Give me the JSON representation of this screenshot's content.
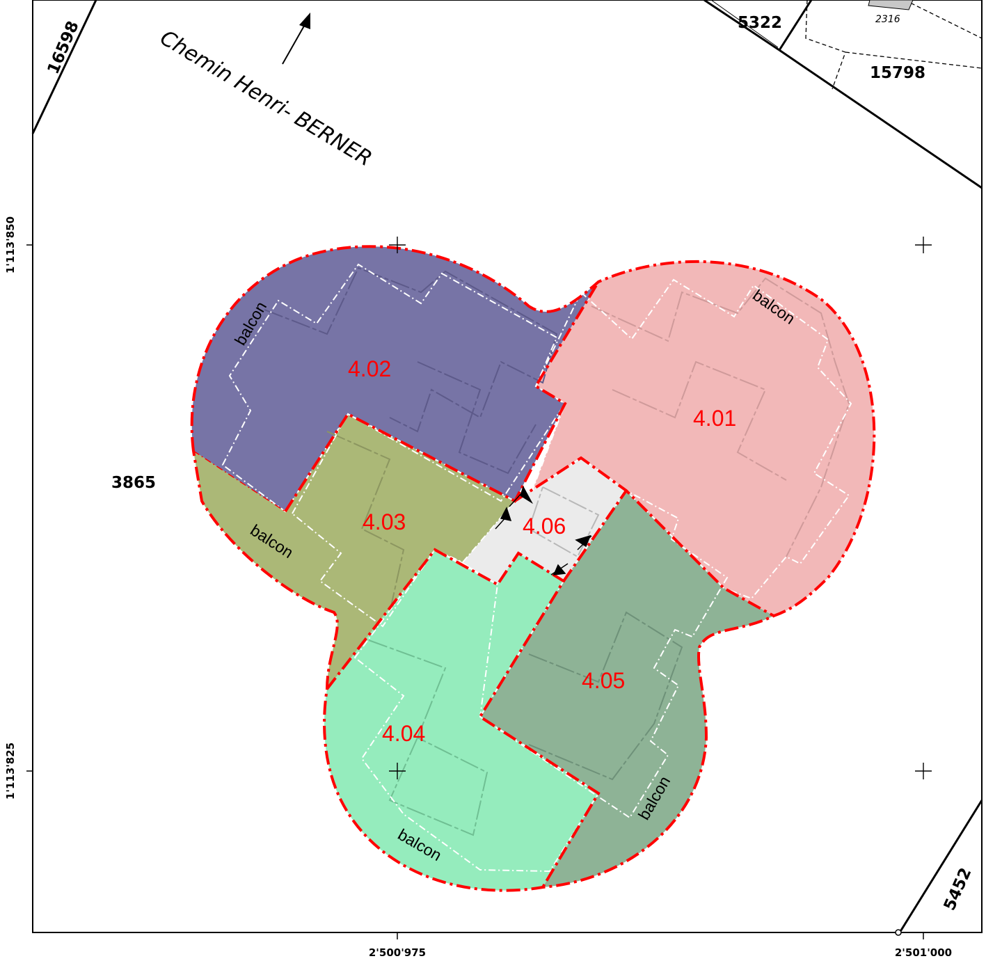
{
  "street": {
    "name": "Chemin Henri- BERNER"
  },
  "parcels": {
    "p16598": "16598",
    "p5322": "5322",
    "p15798": "15798",
    "p2316": "2316",
    "p3865": "3865",
    "p5452": "5452"
  },
  "units": [
    {
      "id": "4.01",
      "color": "#f2b8b8"
    },
    {
      "id": "4.02",
      "color": "#7774a6"
    },
    {
      "id": "4.03",
      "color": "#abb877"
    },
    {
      "id": "4.04",
      "color": "#95ecbd"
    },
    {
      "id": "4.05",
      "color": "#8eb396"
    },
    {
      "id": "4.06",
      "color": "#ebebeb"
    }
  ],
  "balcony_label": "balcon",
  "coordinates": {
    "y_top": "1'113'850",
    "y_bottom": "1'113'825",
    "x_left": "2'500'975",
    "x_right": "2'501'000"
  },
  "colors": {
    "boundary": "#ff0000",
    "text_units": "#ff0000"
  }
}
